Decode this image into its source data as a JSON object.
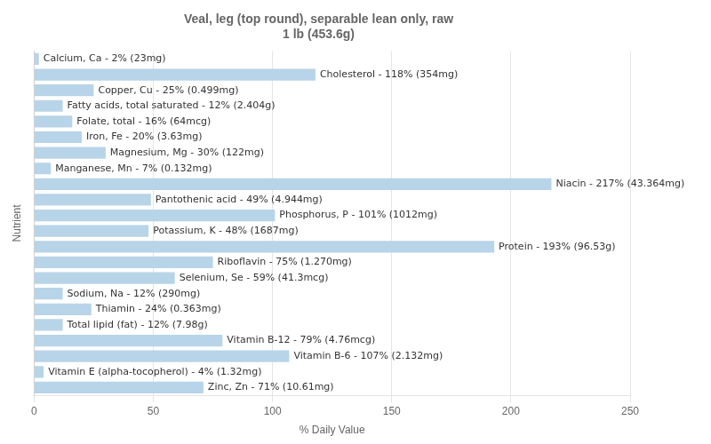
{
  "chart_data": {
    "type": "bar",
    "orientation": "horizontal",
    "title": "Veal, leg (top round), separable lean only, raw\n1 lb (453.6g)",
    "xlabel": "% Daily Value",
    "ylabel": "Nutrient",
    "categories": [
      "Calcium, Ca - 2% (23mg)",
      "Cholesterol - 118% (354mg)",
      "Copper, Cu - 25% (0.499mg)",
      "Fatty acids, total saturated - 12% (2.404g)",
      "Folate, total - 16% (64mcg)",
      "Iron, Fe - 20% (3.63mg)",
      "Magnesium, Mg - 30% (122mg)",
      "Manganese, Mn - 7% (0.132mg)",
      "Niacin - 217% (43.364mg)",
      "Pantothenic acid - 49% (4.944mg)",
      "Phosphorus, P - 101% (1012mg)",
      "Potassium, K - 48% (1687mg)",
      "Protein - 193% (96.53g)",
      "Riboflavin - 75% (1.270mg)",
      "Selenium, Se - 59% (41.3mcg)",
      "Sodium, Na - 12% (290mg)",
      "Thiamin - 24% (0.363mg)",
      "Total lipid (fat) - 12% (7.98g)",
      "Vitamin B-12 - 79% (4.76mcg)",
      "Vitamin B-6 - 107% (2.132mg)",
      "Vitamin E (alpha-tocopherol) - 4% (1.32mg)",
      "Zinc, Zn - 71% (10.61mg)"
    ],
    "values": [
      2,
      118,
      25,
      12,
      16,
      20,
      30,
      7,
      217,
      49,
      101,
      48,
      193,
      75,
      59,
      12,
      24,
      12,
      79,
      107,
      4,
      71
    ],
    "color": "#b8d4e8",
    "xlim": [
      0,
      250
    ],
    "xticks": [
      0,
      50,
      100,
      150,
      200,
      250
    ],
    "grid": true,
    "tick_labels": "x"
  }
}
